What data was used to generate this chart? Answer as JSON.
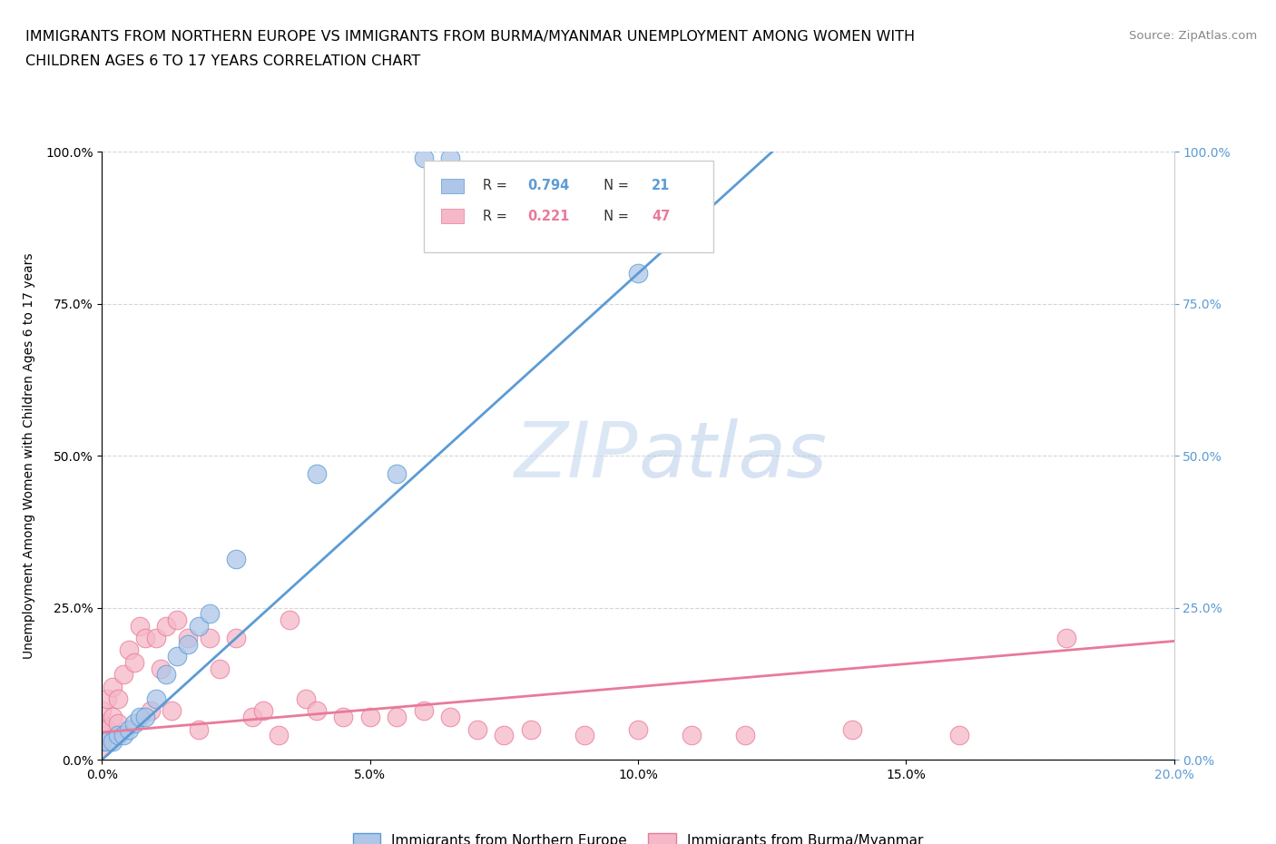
{
  "title_line1": "IMMIGRANTS FROM NORTHERN EUROPE VS IMMIGRANTS FROM BURMA/MYANMAR UNEMPLOYMENT AMONG WOMEN WITH",
  "title_line2": "CHILDREN AGES 6 TO 17 YEARS CORRELATION CHART",
  "source": "Source: ZipAtlas.com",
  "ylabel": "Unemployment Among Women with Children Ages 6 to 17 years",
  "xlabel_blue": "Immigrants from Northern Europe",
  "xlabel_pink": "Immigrants from Burma/Myanmar",
  "xmin": 0.0,
  "xmax": 0.2,
  "ymin": 0.0,
  "ymax": 1.0,
  "yticks": [
    0.0,
    0.25,
    0.5,
    0.75,
    1.0
  ],
  "ytick_labels_left": [
    "0.0%",
    "25.0%",
    "50.0%",
    "75.0%",
    "100.0%"
  ],
  "ytick_labels_right": [
    "0.0%",
    "25.0%",
    "50.0%",
    "75.0%",
    "100.0%"
  ],
  "xticks": [
    0.0,
    0.05,
    0.1,
    0.15,
    0.2
  ],
  "xtick_labels": [
    "0.0%",
    "5.0%",
    "10.0%",
    "15.0%",
    "20.0%"
  ],
  "R_blue": 0.794,
  "N_blue": 21,
  "R_pink": 0.221,
  "N_pink": 47,
  "color_blue": "#aec6e8",
  "color_pink": "#f5b8c8",
  "line_blue": "#5b9bd5",
  "line_pink": "#e87a9a",
  "right_tick_color": "#5b9bd5",
  "watermark_color": "#d0dff0",
  "blue_x": [
    0.0,
    0.001,
    0.002,
    0.003,
    0.004,
    0.005,
    0.006,
    0.007,
    0.008,
    0.01,
    0.012,
    0.014,
    0.016,
    0.018,
    0.02,
    0.025,
    0.04,
    0.055,
    0.06,
    0.065,
    0.1
  ],
  "blue_y": [
    0.03,
    0.03,
    0.03,
    0.04,
    0.04,
    0.05,
    0.06,
    0.07,
    0.07,
    0.1,
    0.14,
    0.17,
    0.19,
    0.22,
    0.24,
    0.33,
    0.47,
    0.47,
    0.99,
    0.99,
    0.8
  ],
  "pink_x": [
    0.0,
    0.0,
    0.0,
    0.0,
    0.001,
    0.001,
    0.002,
    0.002,
    0.003,
    0.003,
    0.004,
    0.005,
    0.006,
    0.007,
    0.008,
    0.009,
    0.01,
    0.011,
    0.012,
    0.013,
    0.014,
    0.016,
    0.018,
    0.02,
    0.022,
    0.025,
    0.028,
    0.03,
    0.033,
    0.035,
    0.038,
    0.04,
    0.045,
    0.05,
    0.055,
    0.06,
    0.065,
    0.07,
    0.075,
    0.08,
    0.09,
    0.1,
    0.11,
    0.12,
    0.14,
    0.16,
    0.18
  ],
  "pink_y": [
    0.02,
    0.04,
    0.06,
    0.08,
    0.05,
    0.1,
    0.07,
    0.12,
    0.06,
    0.1,
    0.14,
    0.18,
    0.16,
    0.22,
    0.2,
    0.08,
    0.2,
    0.15,
    0.22,
    0.08,
    0.23,
    0.2,
    0.05,
    0.2,
    0.15,
    0.2,
    0.07,
    0.08,
    0.04,
    0.23,
    0.1,
    0.08,
    0.07,
    0.07,
    0.07,
    0.08,
    0.07,
    0.05,
    0.04,
    0.05,
    0.04,
    0.05,
    0.04,
    0.04,
    0.05,
    0.04,
    0.2
  ],
  "blue_line_x0": 0.0,
  "blue_line_y0": 0.0,
  "blue_line_x1": 0.125,
  "blue_line_y1": 1.0,
  "pink_line_x0": 0.0,
  "pink_line_y0": 0.045,
  "pink_line_x1": 0.2,
  "pink_line_y1": 0.195
}
